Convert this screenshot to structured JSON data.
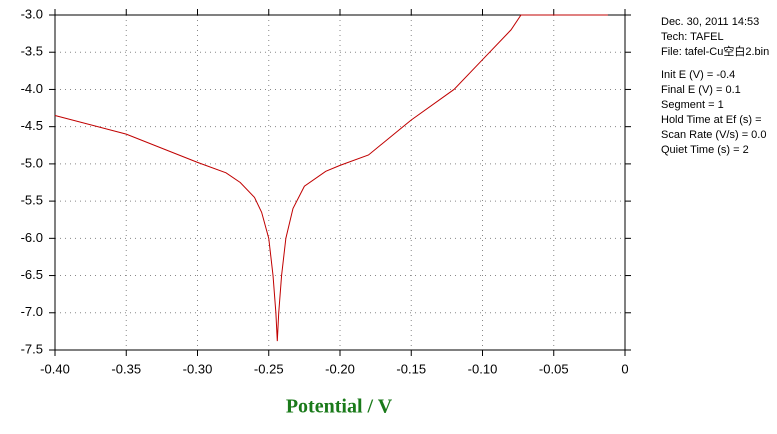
{
  "chart_data": {
    "type": "line",
    "x_label": "Potential / V",
    "annotations": [
      "Dec. 30, 2011   14:53",
      "Tech: TAFEL",
      "File: tafel-Cu空白2.bin",
      "Init E (V) = -0.4",
      "Final E (V) = 0.1",
      "Segment = 1",
      "Hold Time at Ef (s) =",
      "Scan Rate (V/s) = 0.0",
      "Quiet Time (s) = 2"
    ],
    "x": [
      -0.4,
      -0.35,
      -0.3,
      -0.28,
      -0.27,
      -0.26,
      -0.255,
      -0.25,
      -0.247,
      -0.245,
      -0.244,
      -0.243,
      -0.241,
      -0.238,
      -0.233,
      -0.225,
      -0.21,
      -0.2,
      -0.18,
      -0.15,
      -0.12,
      -0.1,
      -0.08,
      -0.073,
      -0.012
    ],
    "series": [
      {
        "color": "#c00000",
        "values": [
          -4.35,
          -4.6,
          -4.98,
          -5.12,
          -5.25,
          -5.45,
          -5.65,
          -6.0,
          -6.5,
          -7.0,
          -7.38,
          -7.0,
          -6.5,
          -6.0,
          -5.6,
          -5.3,
          -5.1,
          -5.02,
          -4.88,
          -4.41,
          -4.0,
          -3.6,
          -3.2,
          -3.0,
          -3.0
        ]
      }
    ],
    "xlim": [
      -0.4,
      0
    ],
    "ylim": [
      -7.5,
      -3.0
    ],
    "xticks": [
      {
        "value": -0.4,
        "label": "-0.40"
      },
      -0.35,
      {
        "value": -0.3,
        "label": "-0.30"
      },
      -0.25,
      {
        "value": -0.2,
        "label": "-0.20"
      },
      -0.15,
      {
        "value": -0.1,
        "label": "-0.10"
      },
      -0.05,
      0
    ],
    "yticks": [
      {
        "value": -3.0,
        "label": "-3.0"
      },
      -3.5,
      {
        "value": -4.0,
        "label": "-4.0"
      },
      -4.5,
      {
        "value": -5.0,
        "label": "-5.0"
      },
      -5.5,
      {
        "value": -6.0,
        "label": "-6.0"
      },
      -6.5,
      {
        "value": -7.0,
        "label": "-7.0"
      },
      {
        "value": -7.5,
        "label": "-7.5"
      }
    ],
    "grid": true
  }
}
